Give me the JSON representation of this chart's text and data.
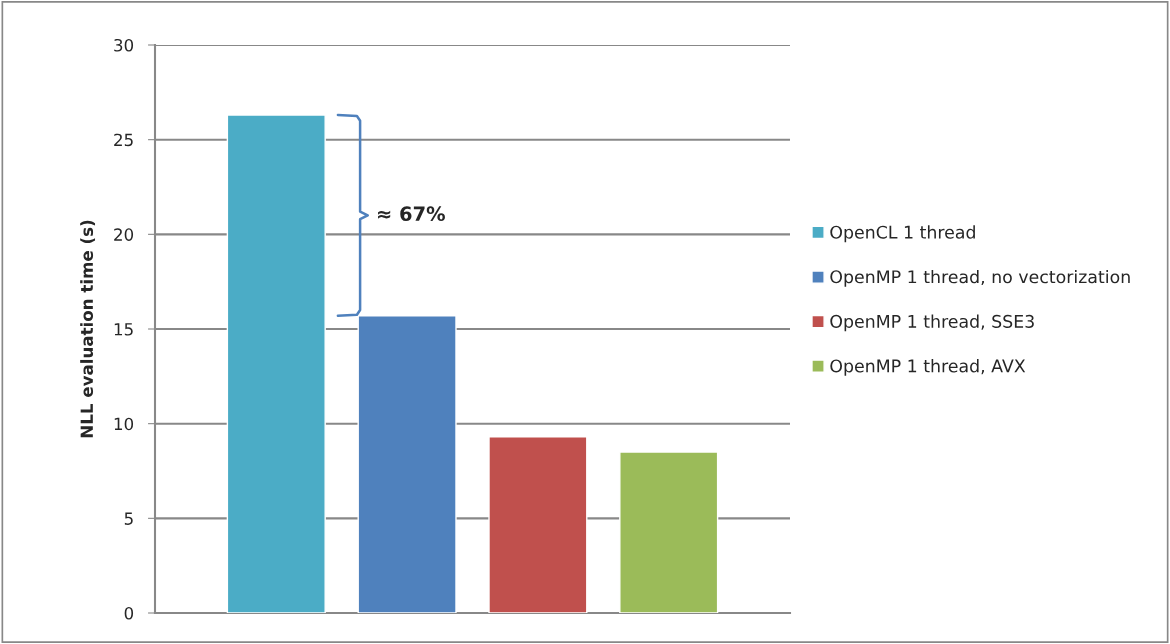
{
  "chart_data": {
    "type": "bar",
    "ylabel": "NLL evaluation time (s)",
    "categories": [
      null
    ],
    "series": [
      {
        "name": "OpenCL 1 thread",
        "color": "#4bacc6",
        "values": [
          26.3
        ]
      },
      {
        "name": "OpenMP 1 thread, no vectorization",
        "color": "#4f81bd",
        "values": [
          15.7
        ]
      },
      {
        "name": "OpenMP 1 thread, SSE3",
        "color": "#c0504d",
        "values": [
          9.3
        ]
      },
      {
        "name": "OpenMP 1 thread, AVX",
        "color": "#9bbb59",
        "values": [
          8.5
        ]
      }
    ],
    "ylim": [
      0,
      30
    ],
    "yticks": [
      0,
      5,
      10,
      15,
      20,
      25,
      30
    ],
    "grid": "y",
    "legend": "right",
    "annotations": [
      "≈ 67%"
    ]
  }
}
